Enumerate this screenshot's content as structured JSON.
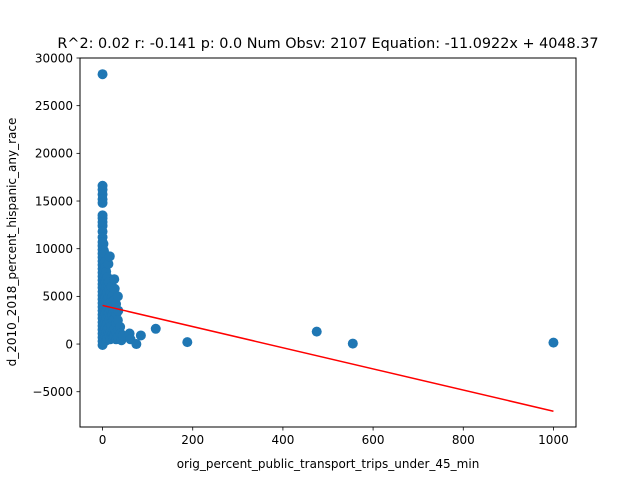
{
  "chart_data": {
    "type": "scatter",
    "title": "R^2: 0.02 r: -0.141 p: 0.0 Num Obsv: 2107 Equation: -11.0922x + 4048.37",
    "xlabel": "orig_percent_public_transport_trips_under_45_min",
    "ylabel": "d_2010_2018_percent_hispanic_any_race",
    "xlim": [
      -50,
      1050
    ],
    "ylim": [
      -8700,
      30000
    ],
    "xticks": [
      0,
      200,
      400,
      600,
      800,
      1000
    ],
    "xtick_labels": [
      "0",
      "200",
      "400",
      "600",
      "800",
      "1000"
    ],
    "yticks": [
      -5000,
      0,
      5000,
      10000,
      15000,
      20000,
      25000,
      30000
    ],
    "ytick_labels": [
      "−5000",
      "0",
      "5000",
      "10000",
      "15000",
      "20000",
      "25000",
      "30000"
    ],
    "grid": false,
    "colors": {
      "points": "#1f77b4",
      "fit_line": "#ff0000"
    },
    "fit_line": {
      "slope": -11.0922,
      "intercept": 4048.37,
      "x_range": [
        0,
        1000
      ]
    },
    "points": [
      [
        0,
        28300
      ],
      [
        0,
        16600
      ],
      [
        0,
        16200
      ],
      [
        0,
        15700
      ],
      [
        0,
        15200
      ],
      [
        0,
        14800
      ],
      [
        0,
        13500
      ],
      [
        0,
        13200
      ],
      [
        0,
        12800
      ],
      [
        0,
        12400
      ],
      [
        0,
        11800
      ],
      [
        0,
        11200
      ],
      [
        0,
        10700
      ],
      [
        0,
        10300
      ],
      [
        0,
        9900
      ],
      [
        0,
        9500
      ],
      [
        0,
        9100
      ],
      [
        0,
        8700
      ],
      [
        0,
        8300
      ],
      [
        0,
        7900
      ],
      [
        0,
        7500
      ],
      [
        0,
        7100
      ],
      [
        0,
        6700
      ],
      [
        0,
        6300
      ],
      [
        0,
        5900
      ],
      [
        0,
        5500
      ],
      [
        0,
        5100
      ],
      [
        0,
        4700
      ],
      [
        0,
        4300
      ],
      [
        0,
        3900
      ],
      [
        0,
        3500
      ],
      [
        0,
        3100
      ],
      [
        0,
        2700
      ],
      [
        0,
        2300
      ],
      [
        0,
        1900
      ],
      [
        0,
        1500
      ],
      [
        0,
        1100
      ],
      [
        0,
        700
      ],
      [
        0,
        300
      ],
      [
        0,
        -100
      ],
      [
        2,
        10500
      ],
      [
        3,
        9800
      ],
      [
        2,
        9000
      ],
      [
        3,
        8200
      ],
      [
        2,
        7400
      ],
      [
        3,
        6600
      ],
      [
        2,
        5800
      ],
      [
        3,
        5000
      ],
      [
        2,
        4200
      ],
      [
        3,
        3400
      ],
      [
        2,
        2600
      ],
      [
        3,
        1800
      ],
      [
        2,
        1000
      ],
      [
        3,
        200
      ],
      [
        4,
        9500
      ],
      [
        5,
        8600
      ],
      [
        4,
        7800
      ],
      [
        5,
        7000
      ],
      [
        4,
        6200
      ],
      [
        5,
        5400
      ],
      [
        4,
        4600
      ],
      [
        5,
        3800
      ],
      [
        4,
        3000
      ],
      [
        5,
        2200
      ],
      [
        4,
        1400
      ],
      [
        5,
        600
      ],
      [
        6,
        8000
      ],
      [
        7,
        7200
      ],
      [
        6,
        6400
      ],
      [
        7,
        5600
      ],
      [
        6,
        4800
      ],
      [
        7,
        4000
      ],
      [
        6,
        3200
      ],
      [
        7,
        2400
      ],
      [
        6,
        1600
      ],
      [
        7,
        800
      ],
      [
        8,
        7600
      ],
      [
        9,
        6800
      ],
      [
        8,
        6000
      ],
      [
        9,
        5200
      ],
      [
        8,
        4400
      ],
      [
        9,
        3600
      ],
      [
        8,
        2800
      ],
      [
        9,
        2000
      ],
      [
        8,
        1200
      ],
      [
        9,
        400
      ],
      [
        11,
        7000
      ],
      [
        12,
        6200
      ],
      [
        11,
        5400
      ],
      [
        12,
        4600
      ],
      [
        11,
        3800
      ],
      [
        12,
        3000
      ],
      [
        11,
        2200
      ],
      [
        12,
        1400
      ],
      [
        11,
        600
      ],
      [
        13,
        8400
      ],
      [
        14,
        6500
      ],
      [
        15,
        5700
      ],
      [
        14,
        4900
      ],
      [
        15,
        4100
      ],
      [
        14,
        3300
      ],
      [
        15,
        2500
      ],
      [
        14,
        1700
      ],
      [
        15,
        900
      ],
      [
        16,
        9200
      ],
      [
        17,
        5300
      ],
      [
        18,
        4500
      ],
      [
        17,
        3700
      ],
      [
        18,
        2900
      ],
      [
        17,
        2100
      ],
      [
        18,
        1300
      ],
      [
        17,
        500
      ],
      [
        20,
        6000
      ],
      [
        21,
        5000
      ],
      [
        20,
        4000
      ],
      [
        21,
        3000
      ],
      [
        20,
        2000
      ],
      [
        21,
        1000
      ],
      [
        23,
        4500
      ],
      [
        24,
        3500
      ],
      [
        23,
        2500
      ],
      [
        24,
        1500
      ],
      [
        23,
        700
      ],
      [
        26,
        6800
      ],
      [
        27,
        5800
      ],
      [
        26,
        4600
      ],
      [
        27,
        3600
      ],
      [
        26,
        2600
      ],
      [
        27,
        1600
      ],
      [
        26,
        800
      ],
      [
        30,
        4200
      ],
      [
        31,
        3200
      ],
      [
        30,
        2200
      ],
      [
        31,
        1200
      ],
      [
        30,
        500
      ],
      [
        34,
        5000
      ],
      [
        35,
        3500
      ],
      [
        34,
        2500
      ],
      [
        35,
        1500
      ],
      [
        34,
        700
      ],
      [
        39,
        1800
      ],
      [
        40,
        1100
      ],
      [
        42,
        400
      ],
      [
        45,
        900
      ],
      [
        60,
        1100
      ],
      [
        62,
        500
      ],
      [
        75,
        0
      ],
      [
        85,
        900
      ],
      [
        118,
        1600
      ],
      [
        188,
        200
      ],
      [
        475,
        1300
      ],
      [
        555,
        50
      ],
      [
        1000,
        150
      ]
    ]
  }
}
